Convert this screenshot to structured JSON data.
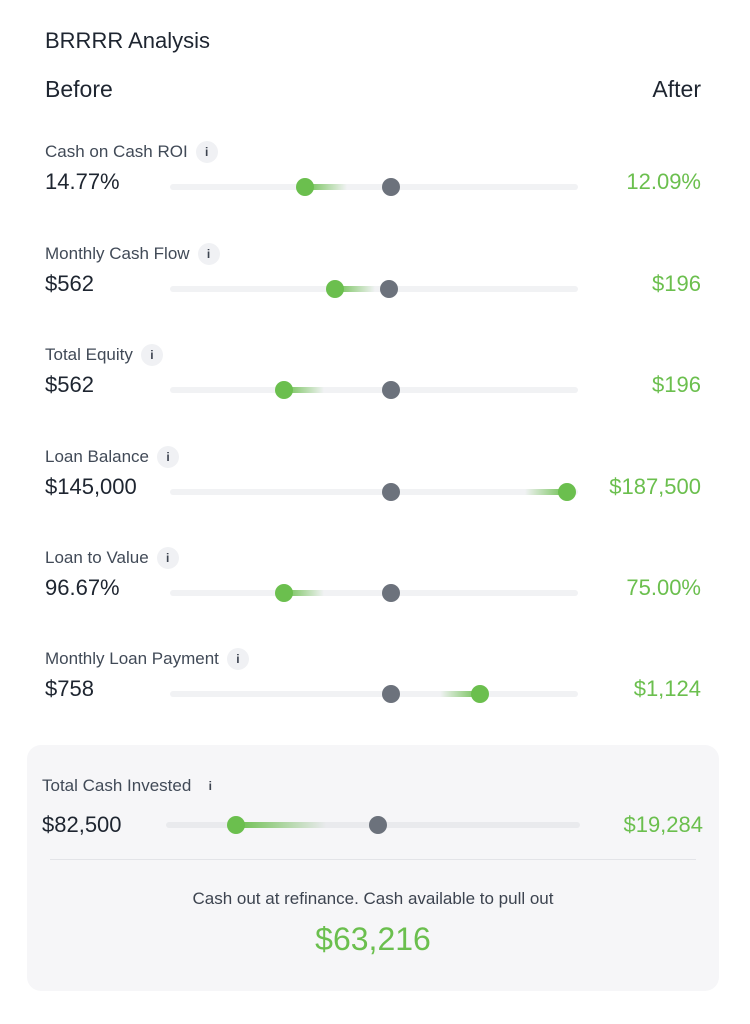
{
  "header": {
    "title": "BRRRR Analysis",
    "before_label": "Before",
    "after_label": "After"
  },
  "info_glyph": "i",
  "metrics": [
    {
      "label": "Cash on Cash ROI",
      "before": "14.77%",
      "after": "12.09%"
    },
    {
      "label": "Monthly Cash Flow",
      "before": "$562",
      "after": "$196"
    },
    {
      "label": "Total Equity",
      "before": "$562",
      "after": "$196"
    },
    {
      "label": "Loan Balance",
      "before": "$145,000",
      "after": "$187,500"
    },
    {
      "label": "Loan to Value",
      "before": "96.67%",
      "after": "75.00%"
    },
    {
      "label": "Monthly Loan Payment",
      "before": "$758",
      "after": "$1,124"
    }
  ],
  "summary": {
    "label": "Total Cash Invested",
    "before": "$82,500",
    "after": "$19,284",
    "cashout_label": "Cash out at refinance. Cash available to pull out",
    "cashout_value": "$63,216"
  },
  "colors": {
    "accent_green": "#6bbf4e",
    "marker_gray": "#6c727c",
    "track": "#f1f2f4"
  }
}
